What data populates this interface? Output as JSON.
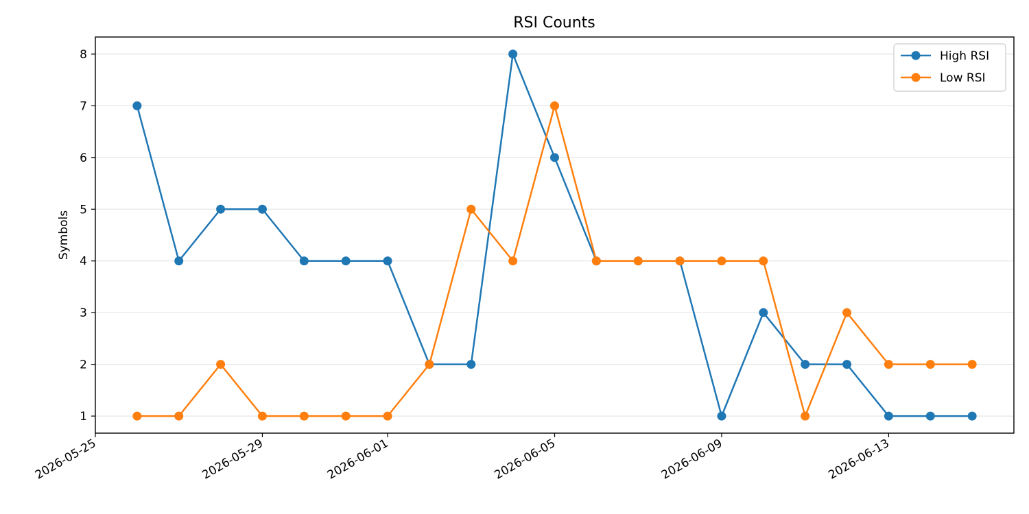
{
  "chart_data": {
    "type": "line",
    "title": "RSI Counts",
    "xlabel": "",
    "ylabel": "Symbols",
    "x": [
      "2026-05-26",
      "2026-05-27",
      "2026-05-28",
      "2026-05-29",
      "2026-05-30",
      "2026-05-31",
      "2026-06-01",
      "2026-06-02",
      "2026-06-03",
      "2026-06-04",
      "2026-06-05",
      "2026-06-06",
      "2026-06-07",
      "2026-06-08",
      "2026-06-09",
      "2026-06-10",
      "2026-06-11",
      "2026-06-12",
      "2026-06-13",
      "2026-06-14",
      "2026-06-15"
    ],
    "xlim": [
      "2026-05-25",
      "2026-06-16"
    ],
    "x_ticks": [
      "2026-05-25",
      "2026-05-29",
      "2026-06-01",
      "2026-06-05",
      "2026-06-09",
      "2026-06-13"
    ],
    "ylim": [
      0.67,
      8.33
    ],
    "y_ticks": [
      1,
      2,
      3,
      4,
      5,
      6,
      7,
      8
    ],
    "grid": "horizontal",
    "legend": "top-right",
    "series": [
      {
        "name": "High RSI",
        "color": "#1f77b4",
        "values": [
          7,
          4,
          5,
          5,
          4,
          4,
          4,
          2,
          2,
          8,
          6,
          4,
          4,
          4,
          1,
          3,
          2,
          2,
          1,
          1,
          1
        ]
      },
      {
        "name": "Low RSI",
        "color": "#ff7f0e",
        "values": [
          1,
          1,
          2,
          1,
          1,
          1,
          1,
          2,
          5,
          4,
          7,
          4,
          4,
          4,
          4,
          4,
          1,
          3,
          2,
          2,
          2
        ]
      }
    ]
  }
}
